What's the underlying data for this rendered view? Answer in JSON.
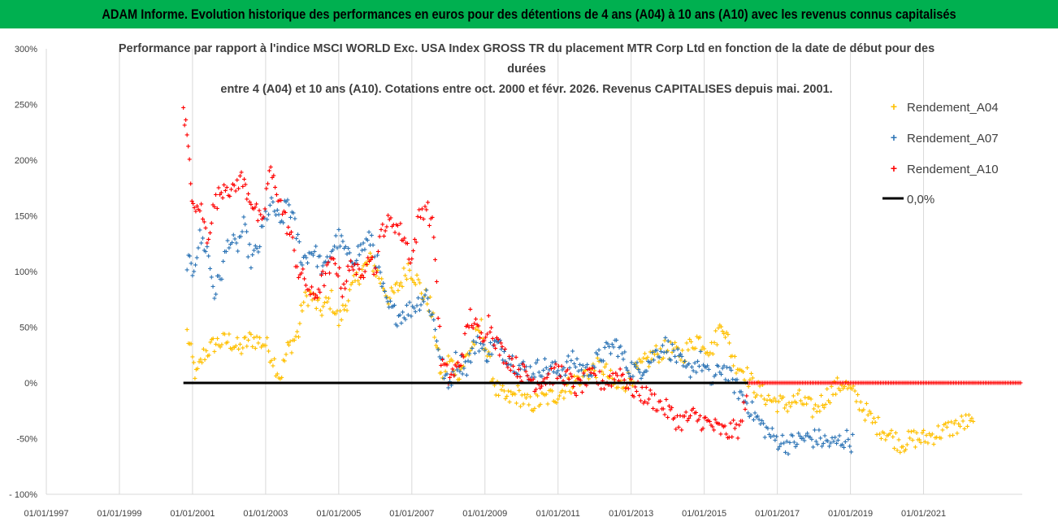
{
  "banner": {
    "title": "ADAM Informe. Evolution historique des performances en euros pour des détentions de 4 ans (A04) à 10 ans (A10) avec les revenus connus capitalisés",
    "color": "#00b050"
  },
  "chart_data": {
    "type": "scatter",
    "title": [
      "Performance par rapport à l'indice MSCI WORLD Exc. USA Index GROSS TR  du placement MTR Corp Ltd en fonction de la date de début pour des",
      "durées",
      "entre 4 (A04) et 10 ans (A10). Cotations entre oct. 2000 et févr. 2026. Revenus CAPITALISES depuis mai. 2001."
    ],
    "xlabel": "",
    "ylabel": "",
    "xlim": [
      1997.0,
      2023.7
    ],
    "ylim": [
      -100,
      300
    ],
    "grid": "vertical",
    "legend_position": "right",
    "x_ticks": [
      1997,
      1999,
      2001,
      2003,
      2005,
      2007,
      2009,
      2011,
      2013,
      2015,
      2017,
      2019,
      2021
    ],
    "x_tick_labels": [
      "01/01/1997",
      "01/01/1999",
      "01/01/2001",
      "01/01/2003",
      "01/01/2005",
      "01/01/2007",
      "01/01/2009",
      "01/01/2011",
      "01/01/2013",
      "01/01/2015",
      "01/01/2017",
      "01/01/2019",
      "01/01/2021"
    ],
    "y_ticks": [
      -100,
      -50,
      0,
      50,
      100,
      150,
      200,
      250,
      300
    ],
    "y_tick_labels": [
      "- 100%",
      "-50%",
      "0%",
      "50%",
      "100%",
      "150%",
      "200%",
      "250%",
      "300%"
    ],
    "series": [
      {
        "name": "Rendement_A04",
        "color": "#ffc000",
        "points": [
          [
            2000.85,
            45
          ],
          [
            2001.0,
            20
          ],
          [
            2001.1,
            5
          ],
          [
            2001.3,
            25
          ],
          [
            2001.6,
            35
          ],
          [
            2002.0,
            38
          ],
          [
            2002.3,
            30
          ],
          [
            2002.6,
            40
          ],
          [
            2003.0,
            35
          ],
          [
            2003.2,
            22
          ],
          [
            2003.4,
            5
          ],
          [
            2003.6,
            30
          ],
          [
            2003.9,
            45
          ],
          [
            2004.0,
            70
          ],
          [
            2004.2,
            80
          ],
          [
            2004.5,
            65
          ],
          [
            2004.8,
            75
          ],
          [
            2005.0,
            55
          ],
          [
            2005.3,
            80
          ],
          [
            2005.6,
            100
          ],
          [
            2005.9,
            110
          ],
          [
            2006.1,
            95
          ],
          [
            2006.4,
            75
          ],
          [
            2006.7,
            90
          ],
          [
            2006.9,
            105
          ],
          [
            2007.1,
            95
          ],
          [
            2007.3,
            80
          ],
          [
            2007.5,
            70
          ],
          [
            2007.7,
            30
          ],
          [
            2007.8,
            5
          ],
          [
            2008.0,
            20
          ],
          [
            2008.3,
            10
          ],
          [
            2008.6,
            30
          ],
          [
            2008.9,
            50
          ],
          [
            2009.1,
            20
          ],
          [
            2009.3,
            -5
          ],
          [
            2009.6,
            -15
          ],
          [
            2009.9,
            -10
          ],
          [
            2010.2,
            -20
          ],
          [
            2010.6,
            -15
          ],
          [
            2011.0,
            -10
          ],
          [
            2011.4,
            0
          ],
          [
            2011.8,
            10
          ],
          [
            2012.2,
            15
          ],
          [
            2012.6,
            -5
          ],
          [
            2013.0,
            5
          ],
          [
            2013.3,
            15
          ],
          [
            2013.6,
            25
          ],
          [
            2014.0,
            30
          ],
          [
            2014.4,
            25
          ],
          [
            2014.8,
            40
          ],
          [
            2015.2,
            30
          ],
          [
            2015.5,
            55
          ],
          [
            2015.8,
            20
          ],
          [
            2016.1,
            10
          ],
          [
            2016.4,
            -5
          ],
          [
            2016.8,
            -15
          ],
          [
            2017.2,
            -20
          ],
          [
            2017.6,
            -15
          ],
          [
            2018.0,
            -25
          ],
          [
            2018.4,
            -10
          ],
          [
            2018.8,
            0
          ],
          [
            2019.2,
            -15
          ],
          [
            2019.6,
            -35
          ],
          [
            2020.0,
            -45
          ],
          [
            2020.4,
            -55
          ],
          [
            2020.7,
            -50
          ],
          [
            2021.0,
            -50
          ],
          [
            2021.4,
            -45
          ],
          [
            2021.8,
            -40
          ],
          [
            2022.2,
            -35
          ],
          [
            2022.4,
            -40
          ]
        ]
      },
      {
        "name": "Rendement_A07",
        "color": "#2e75b6",
        "points": [
          [
            2000.85,
            110
          ],
          [
            2001.0,
            100
          ],
          [
            2001.2,
            130
          ],
          [
            2001.4,
            120
          ],
          [
            2001.6,
            80
          ],
          [
            2001.8,
            100
          ],
          [
            2002.0,
            130
          ],
          [
            2002.2,
            120
          ],
          [
            2002.4,
            140
          ],
          [
            2002.6,
            110
          ],
          [
            2002.8,
            120
          ],
          [
            2003.0,
            150
          ],
          [
            2003.2,
            160
          ],
          [
            2003.4,
            140
          ],
          [
            2003.6,
            165
          ],
          [
            2003.8,
            140
          ],
          [
            2004.0,
            110
          ],
          [
            2004.3,
            120
          ],
          [
            2004.6,
            100
          ],
          [
            2004.8,
            120
          ],
          [
            2005.0,
            130
          ],
          [
            2005.3,
            110
          ],
          [
            2005.6,
            120
          ],
          [
            2005.9,
            130
          ],
          [
            2006.1,
            100
          ],
          [
            2006.3,
            70
          ],
          [
            2006.6,
            60
          ],
          [
            2006.9,
            65
          ],
          [
            2007.1,
            70
          ],
          [
            2007.4,
            80
          ],
          [
            2007.6,
            55
          ],
          [
            2007.8,
            20
          ],
          [
            2008.0,
            -5
          ],
          [
            2008.2,
            20
          ],
          [
            2008.5,
            15
          ],
          [
            2008.8,
            40
          ],
          [
            2009.0,
            25
          ],
          [
            2009.3,
            35
          ],
          [
            2009.6,
            25
          ],
          [
            2009.9,
            15
          ],
          [
            2010.2,
            10
          ],
          [
            2010.6,
            15
          ],
          [
            2011.0,
            10
          ],
          [
            2011.4,
            20
          ],
          [
            2011.8,
            10
          ],
          [
            2012.2,
            25
          ],
          [
            2012.6,
            35
          ],
          [
            2012.9,
            15
          ],
          [
            2013.2,
            10
          ],
          [
            2013.5,
            20
          ],
          [
            2013.9,
            35
          ],
          [
            2014.2,
            25
          ],
          [
            2014.5,
            10
          ],
          [
            2014.9,
            20
          ],
          [
            2015.2,
            0
          ],
          [
            2015.5,
            15
          ],
          [
            2015.9,
            -5
          ],
          [
            2016.2,
            -20
          ],
          [
            2016.5,
            -35
          ],
          [
            2016.9,
            -50
          ],
          [
            2017.3,
            -55
          ],
          [
            2017.7,
            -50
          ],
          [
            2018.1,
            -50
          ],
          [
            2018.5,
            -55
          ],
          [
            2018.9,
            -50
          ],
          [
            2019.1,
            -55
          ]
        ]
      },
      {
        "name": "Rendement_A10",
        "color": "#ff0000",
        "points": [
          [
            2000.75,
            250
          ],
          [
            2000.85,
            220
          ],
          [
            2000.95,
            180
          ],
          [
            2001.05,
            150
          ],
          [
            2001.2,
            160
          ],
          [
            2001.4,
            130
          ],
          [
            2001.6,
            160
          ],
          [
            2001.9,
            180
          ],
          [
            2002.1,
            170
          ],
          [
            2002.3,
            185
          ],
          [
            2002.6,
            165
          ],
          [
            2002.9,
            140
          ],
          [
            2003.1,
            190
          ],
          [
            2003.3,
            175
          ],
          [
            2003.5,
            150
          ],
          [
            2003.7,
            130
          ],
          [
            2003.9,
            100
          ],
          [
            2004.1,
            90
          ],
          [
            2004.3,
            75
          ],
          [
            2004.6,
            95
          ],
          [
            2004.9,
            110
          ],
          [
            2005.1,
            85
          ],
          [
            2005.4,
            110
          ],
          [
            2005.6,
            90
          ],
          [
            2005.8,
            120
          ],
          [
            2006.0,
            100
          ],
          [
            2006.2,
            140
          ],
          [
            2006.5,
            145
          ],
          [
            2006.8,
            130
          ],
          [
            2007.0,
            110
          ],
          [
            2007.2,
            150
          ],
          [
            2007.4,
            160
          ],
          [
            2007.6,
            135
          ],
          [
            2007.8,
            20
          ],
          [
            2008.0,
            5
          ],
          [
            2008.3,
            15
          ],
          [
            2008.6,
            60
          ],
          [
            2008.9,
            40
          ],
          [
            2009.1,
            55
          ],
          [
            2009.4,
            30
          ],
          [
            2009.7,
            20
          ],
          [
            2010.0,
            10
          ],
          [
            2010.4,
            0
          ],
          [
            2010.7,
            5
          ],
          [
            2011.1,
            10
          ],
          [
            2011.5,
            -5
          ],
          [
            2011.9,
            5
          ],
          [
            2012.3,
            0
          ],
          [
            2012.7,
            10
          ],
          [
            2013.0,
            -5
          ],
          [
            2013.3,
            -10
          ],
          [
            2013.6,
            -15
          ],
          [
            2014.0,
            -25
          ],
          [
            2014.3,
            -35
          ],
          [
            2014.7,
            -30
          ],
          [
            2015.0,
            -35
          ],
          [
            2015.3,
            -40
          ],
          [
            2015.6,
            -45
          ],
          [
            2016.0,
            -40
          ],
          [
            2016.2,
            0
          ],
          [
            2017.5,
            0
          ],
          [
            2019.0,
            0
          ],
          [
            2020.5,
            0
          ],
          [
            2022.0,
            0
          ],
          [
            2023.7,
            0
          ]
        ]
      },
      {
        "name": "0,0%",
        "color": "#000000",
        "points": [
          [
            2000.75,
            0
          ],
          [
            2016.2,
            0
          ]
        ]
      }
    ]
  }
}
